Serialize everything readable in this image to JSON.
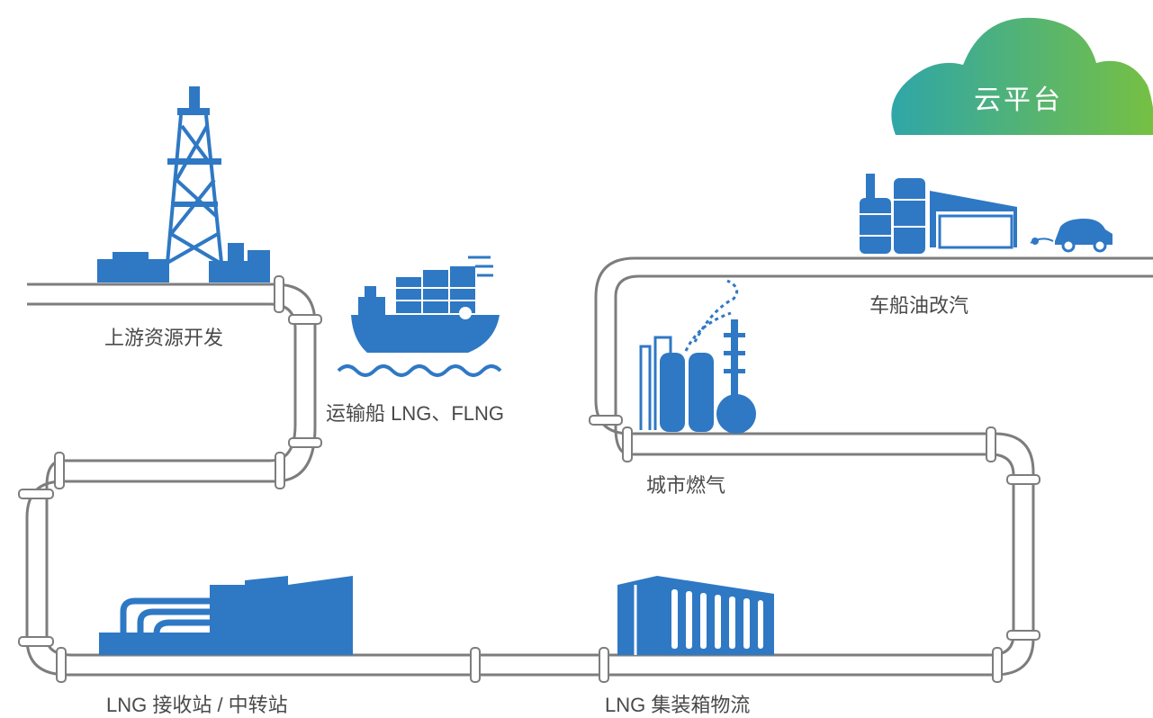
{
  "colors": {
    "pipe": "#7d7d7d",
    "icon": "#2f78c4",
    "cloud_start": "#2fa6a8",
    "cloud_end": "#76c043",
    "text": "#4a4a4a"
  },
  "cloud": {
    "label": "云平台",
    "icon": "cloud-icon"
  },
  "stages": [
    {
      "id": "upstream",
      "label": "上游资源开发",
      "icon": "oil-rig-icon"
    },
    {
      "id": "ship",
      "label": "运输船 LNG、FLNG",
      "icon": "lng-ship-icon"
    },
    {
      "id": "terminal",
      "label": "LNG 接收站 / 中转站",
      "icon": "lng-terminal-icon"
    },
    {
      "id": "container",
      "label": "LNG 集装箱物流",
      "icon": "container-icon"
    },
    {
      "id": "city",
      "label": "城市燃气",
      "icon": "city-gas-plant-icon"
    },
    {
      "id": "vehicle",
      "label": "车船油改汽",
      "icon": "fueling-station-icon"
    }
  ]
}
